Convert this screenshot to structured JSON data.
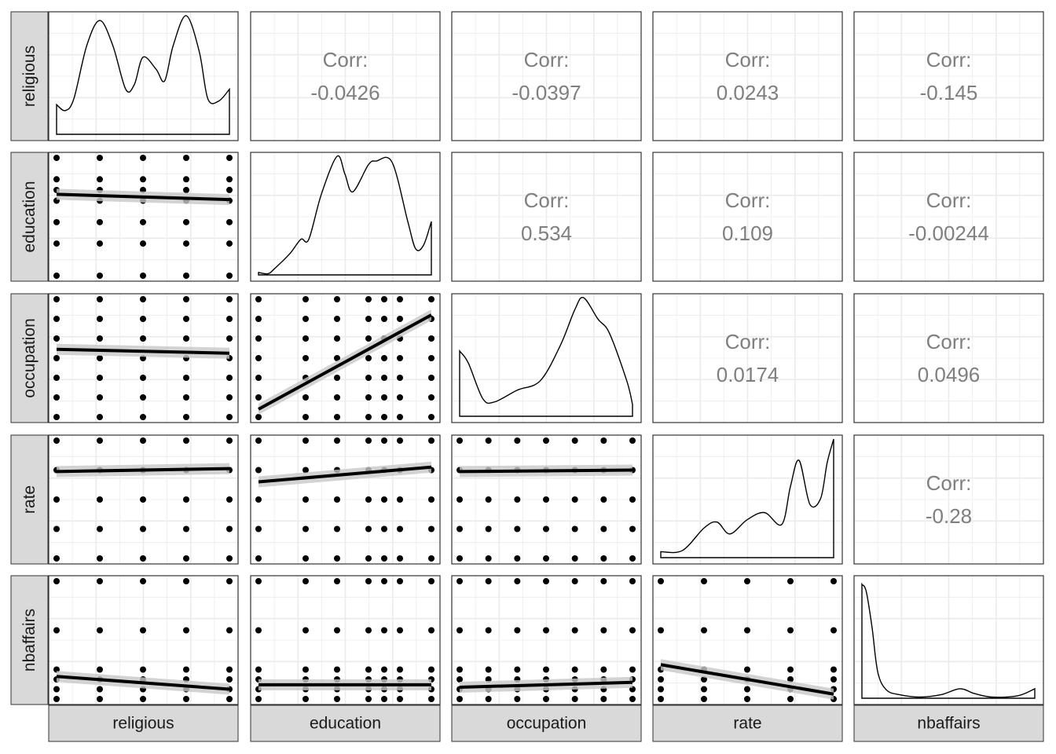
{
  "variables": [
    "religious",
    "education",
    "occupation",
    "rate",
    "nbaffairs"
  ],
  "correlation_label": "Corr:",
  "colors": {
    "strip": "#d9d9d9",
    "grid": "#ebebeb",
    "text": "#7f7f7f",
    "points": "#000000",
    "band": "#c8c8c8"
  },
  "chart_data": {
    "type": "scatter",
    "title": "",
    "variables": [
      "religious",
      "education",
      "occupation",
      "rate",
      "nbaffairs"
    ],
    "correlations": [
      {
        "x": "education",
        "y": "religious",
        "value": "-0.0426"
      },
      {
        "x": "occupation",
        "y": "religious",
        "value": "-0.0397"
      },
      {
        "x": "rate",
        "y": "religious",
        "value": "0.0243"
      },
      {
        "x": "nbaffairs",
        "y": "religious",
        "value": "-0.145"
      },
      {
        "x": "occupation",
        "y": "education",
        "value": "0.534"
      },
      {
        "x": "rate",
        "y": "education",
        "value": "0.109"
      },
      {
        "x": "nbaffairs",
        "y": "education",
        "value": "-0.00244"
      },
      {
        "x": "rate",
        "y": "occupation",
        "value": "0.0174"
      },
      {
        "x": "nbaffairs",
        "y": "occupation",
        "value": "0.0496"
      },
      {
        "x": "nbaffairs",
        "y": "rate",
        "value": "-0.28"
      }
    ],
    "ranges": {
      "religious": [
        1,
        5
      ],
      "education": [
        9,
        20
      ],
      "occupation": [
        1,
        7
      ],
      "rate": [
        1,
        5
      ],
      "nbaffairs": [
        0,
        12
      ]
    },
    "levels": {
      "religious": [
        1,
        2,
        3,
        4,
        5
      ],
      "education": [
        9,
        12,
        14,
        16,
        17,
        18,
        20
      ],
      "occupation": [
        1,
        2,
        3,
        4,
        5,
        6,
        7
      ],
      "rate": [
        1,
        2,
        3,
        4,
        5
      ],
      "nbaffairs": [
        0,
        1,
        2,
        3,
        7,
        12
      ]
    },
    "density_shapes": {
      "religious": [
        [
          1,
          0.25
        ],
        [
          1.2,
          0.2
        ],
        [
          1.4,
          0.3
        ],
        [
          1.7,
          0.75
        ],
        [
          2.0,
          0.96
        ],
        [
          2.3,
          0.75
        ],
        [
          2.6,
          0.38
        ],
        [
          2.8,
          0.42
        ],
        [
          3.0,
          0.65
        ],
        [
          3.3,
          0.55
        ],
        [
          3.5,
          0.45
        ],
        [
          3.7,
          0.75
        ],
        [
          4.0,
          1.0
        ],
        [
          4.3,
          0.7
        ],
        [
          4.5,
          0.3
        ],
        [
          4.75,
          0.28
        ],
        [
          5,
          0.38
        ]
      ],
      "education": [
        [
          9,
          0.02
        ],
        [
          9.6,
          0.01
        ],
        [
          10.0,
          0.05
        ],
        [
          11.0,
          0.18
        ],
        [
          11.7,
          0.3
        ],
        [
          12.2,
          0.3
        ],
        [
          13.0,
          0.68
        ],
        [
          14.0,
          1.0
        ],
        [
          14.5,
          0.85
        ],
        [
          15.0,
          0.7
        ],
        [
          16.0,
          0.93
        ],
        [
          16.5,
          0.96
        ],
        [
          17.5,
          0.95
        ],
        [
          18.5,
          0.45
        ],
        [
          19.0,
          0.22
        ],
        [
          19.5,
          0.25
        ],
        [
          20,
          0.45
        ]
      ],
      "occupation": [
        [
          1,
          0.55
        ],
        [
          1.3,
          0.45
        ],
        [
          1.8,
          0.15
        ],
        [
          2.2,
          0.12
        ],
        [
          3.0,
          0.22
        ],
        [
          3.8,
          0.3
        ],
        [
          4.5,
          0.6
        ],
        [
          5.0,
          0.9
        ],
        [
          5.3,
          1.0
        ],
        [
          5.8,
          0.82
        ],
        [
          6.2,
          0.7
        ],
        [
          6.8,
          0.3
        ],
        [
          7,
          0.1
        ]
      ],
      "rate": [
        [
          1,
          0.05
        ],
        [
          1.5,
          0.06
        ],
        [
          2.0,
          0.25
        ],
        [
          2.3,
          0.3
        ],
        [
          2.6,
          0.2
        ],
        [
          3.0,
          0.32
        ],
        [
          3.4,
          0.38
        ],
        [
          3.8,
          0.28
        ],
        [
          4.0,
          0.6
        ],
        [
          4.2,
          0.82
        ],
        [
          4.45,
          0.45
        ],
        [
          4.7,
          0.5
        ],
        [
          4.85,
          0.8
        ],
        [
          5,
          1.0
        ]
      ],
      "nbaffairs": [
        [
          0,
          0.96
        ],
        [
          0.3,
          0.9
        ],
        [
          0.7,
          0.6
        ],
        [
          1.1,
          0.22
        ],
        [
          1.7,
          0.07
        ],
        [
          2.6,
          0.03
        ],
        [
          4.0,
          0.01
        ],
        [
          5.5,
          0.03
        ],
        [
          6.8,
          0.08
        ],
        [
          7.8,
          0.04
        ],
        [
          9.0,
          0.01
        ],
        [
          10.8,
          0.02
        ],
        [
          12,
          0.08
        ]
      ]
    },
    "regressions": {
      "education|religious": [
        [
          1,
          16.6
        ],
        [
          5,
          16.1
        ]
      ],
      "occupation|religious": [
        [
          1,
          4.45
        ],
        [
          5,
          4.25
        ]
      ],
      "occupation|education": [
        [
          9,
          1.4
        ],
        [
          20,
          6.2
        ]
      ],
      "rate|religious": [
        [
          1,
          3.95
        ],
        [
          5,
          4.05
        ]
      ],
      "rate|education": [
        [
          9,
          3.6
        ],
        [
          20,
          4.1
        ]
      ],
      "rate|occupation": [
        [
          1,
          3.95
        ],
        [
          7,
          4.0
        ]
      ],
      "nbaffairs|religious": [
        [
          1,
          2.3
        ],
        [
          5,
          1.0
        ]
      ],
      "nbaffairs|education": [
        [
          9,
          1.45
        ],
        [
          20,
          1.45
        ]
      ],
      "nbaffairs|occupation": [
        [
          1,
          1.2
        ],
        [
          7,
          1.7
        ]
      ],
      "nbaffairs|rate": [
        [
          1,
          3.5
        ],
        [
          5,
          0.5
        ]
      ]
    }
  }
}
